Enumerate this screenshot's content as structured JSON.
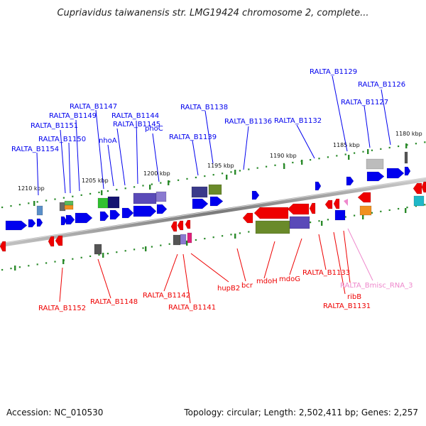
{
  "title": "Cupriavidus taiwanensis str. LMG19424 chromosome 2, complete...",
  "ticks": [
    "1210 kbp",
    "1205 kbp",
    "1200 kbp",
    "1195 kbp",
    "1190 kbp",
    "1185 kbp",
    "1180 kbp"
  ],
  "genes_top": [
    "RALTA_B1154",
    "RALTA_B1151",
    "RALTA_B1150",
    "RALTA_B1149",
    "RALTA_B1147",
    "nhoA",
    "RALTA_B1145",
    "RALTA_B1144",
    "phoC",
    "RALTA_B1139",
    "RALTA_B1138",
    "RALTA_B1136",
    "RALTA_B1132",
    "RALTA_B1129",
    "RALTA_B1127",
    "RALTA_B1126"
  ],
  "genes_bottom": [
    "RALTA_B1152",
    "RALTA_B1148",
    "RALTA_B1142",
    "RALTA_B1141",
    "hupB2",
    "bcr",
    "mdoH",
    "mdoG",
    "RALTA_B1133",
    "ribB",
    "RALTA_B1131",
    "RALTA_Bmisc_RNA_3"
  ],
  "colors": {
    "forward": "#0000ee",
    "reverse": "#ee0000",
    "misc_rna": "#ee88cc",
    "tick": "#2a8a2a",
    "backbone": "#8a8a8a"
  },
  "footer": {
    "accession": "Accession: NC_010530",
    "topology": "Topology: circular; Length: 2,502,411 bp; Genes: 2,257"
  }
}
